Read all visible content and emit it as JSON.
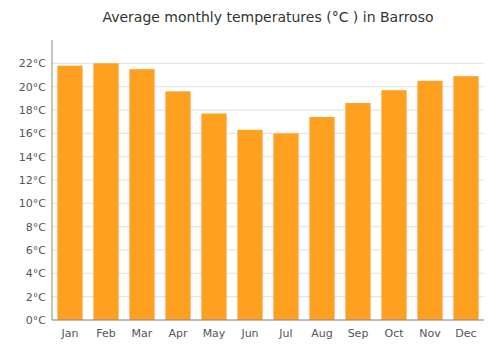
{
  "chart_data": {
    "type": "bar",
    "title": "Average monthly temperatures (°C ) in Barroso",
    "categories": [
      "Jan",
      "Feb",
      "Mar",
      "Apr",
      "May",
      "Jun",
      "Jul",
      "Aug",
      "Sep",
      "Oct",
      "Nov",
      "Dec"
    ],
    "values": [
      21.8,
      22.0,
      21.5,
      19.6,
      17.7,
      16.3,
      16.0,
      17.4,
      18.6,
      19.7,
      20.5,
      20.9
    ],
    "color": "#FFA020",
    "ylim": [
      0,
      24
    ],
    "yticks": [
      {
        "value": 0,
        "label": "0°C"
      },
      {
        "value": 2,
        "label": "2°C"
      },
      {
        "value": 4,
        "label": "4°C"
      },
      {
        "value": 6,
        "label": "6°C"
      },
      {
        "value": 8,
        "label": "8°C"
      },
      {
        "value": 10,
        "label": "10°C"
      },
      {
        "value": 12,
        "label": "12°C"
      },
      {
        "value": 14,
        "label": "14°C"
      },
      {
        "value": 16,
        "label": "16°C"
      },
      {
        "value": 18,
        "label": "18°C"
      },
      {
        "value": 20,
        "label": "20°C"
      },
      {
        "value": 22,
        "label": "22°C"
      }
    ],
    "grid": true
  }
}
